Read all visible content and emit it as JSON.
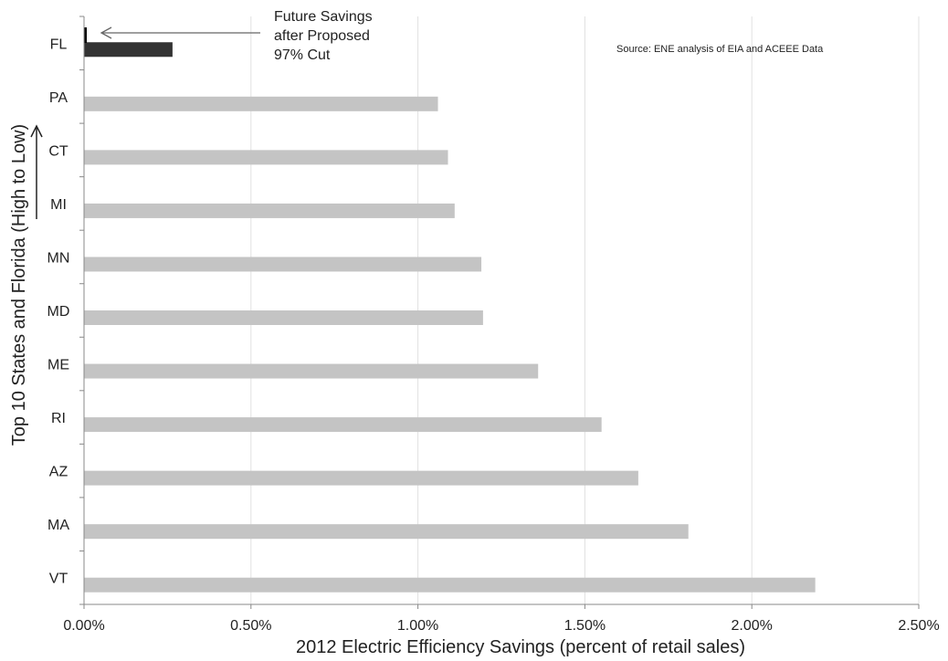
{
  "chart_data": {
    "type": "bar",
    "orientation": "horizontal",
    "title": "",
    "xlabel": "2012 Electric Efficiency Savings (percent of retail sales)",
    "ylabel": "Top 10 States and Florida (High to Low)",
    "xlim": [
      0,
      0.025
    ],
    "x_ticks": [
      "0.00%",
      "0.50%",
      "1.00%",
      "1.50%",
      "2.00%",
      "2.50%"
    ],
    "grid": "vertical",
    "categories": [
      "FL",
      "PA",
      "CT",
      "MI",
      "MN",
      "MD",
      "ME",
      "RI",
      "AZ",
      "MA",
      "VT"
    ],
    "values": [
      0.00265,
      0.0106,
      0.0109,
      0.0111,
      0.0119,
      0.01195,
      0.0136,
      0.0155,
      0.0166,
      0.0181,
      0.0219
    ],
    "bar_colors": [
      "#333333",
      "#c4c4c4",
      "#c4c4c4",
      "#c4c4c4",
      "#c4c4c4",
      "#c4c4c4",
      "#c4c4c4",
      "#c4c4c4",
      "#c4c4c4",
      "#c4c4c4",
      "#c4c4c4"
    ],
    "future_bar": {
      "category": "FL",
      "value": 8e-05,
      "color": "#000000"
    },
    "annotation": {
      "lines": [
        "Future Savings",
        "after Proposed",
        "97% Cut"
      ]
    },
    "source_note": "Source: ENE analysis of EIA and ACEEE Data",
    "colors": {
      "grid": "#e0e0e0",
      "axis": "#888888",
      "text": "#222222"
    }
  }
}
